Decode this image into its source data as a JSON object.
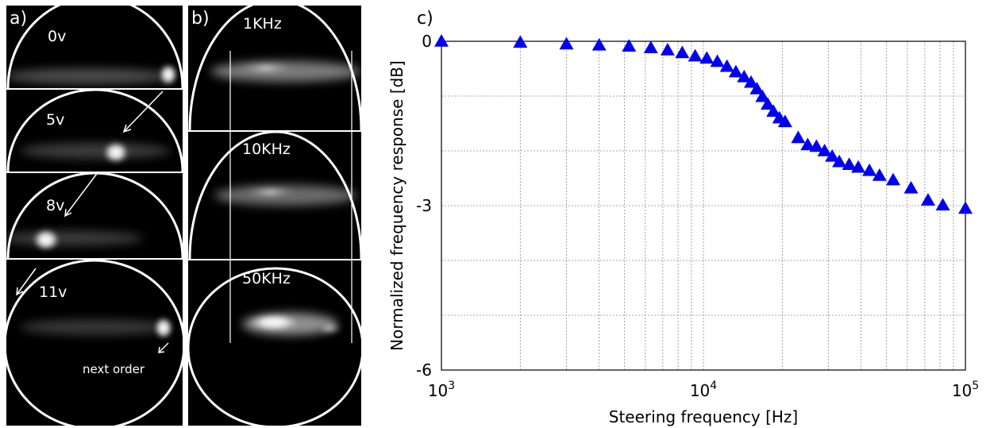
{
  "panel_a": {
    "label": "a)",
    "frames": [
      {
        "voltage": "0v"
      },
      {
        "voltage": "5v"
      },
      {
        "voltage": "8v"
      },
      {
        "voltage": "11v",
        "note": "next order"
      }
    ]
  },
  "panel_b": {
    "label": "b)",
    "frames": [
      {
        "frequency": "1KHz"
      },
      {
        "frequency": "10KHz"
      },
      {
        "frequency": "50KHz"
      }
    ]
  },
  "chart_data": {
    "panel_label": "c)",
    "type": "scatter",
    "xlabel": "Steering frequency [Hz]",
    "ylabel": "Normalized frequency response [dB]",
    "xscale": "log",
    "xlim": [
      1000,
      100000
    ],
    "ylim": [
      -6,
      0
    ],
    "y_ticks": [
      "0",
      "-3",
      "-6"
    ],
    "x_ticks": [
      {
        "base": "10",
        "exp": "3"
      },
      {
        "base": "10",
        "exp": "4"
      },
      {
        "base": "10",
        "exp": "5"
      }
    ],
    "grid": true,
    "marker": "triangle",
    "marker_color": "#0000ee",
    "points": [
      [
        1000,
        0.0
      ],
      [
        2000,
        -0.02
      ],
      [
        3000,
        -0.05
      ],
      [
        4000,
        -0.07
      ],
      [
        5200,
        -0.09
      ],
      [
        6300,
        -0.12
      ],
      [
        7300,
        -0.16
      ],
      [
        8300,
        -0.21
      ],
      [
        9300,
        -0.27
      ],
      [
        10300,
        -0.31
      ],
      [
        11300,
        -0.37
      ],
      [
        12300,
        -0.46
      ],
      [
        13300,
        -0.56
      ],
      [
        14300,
        -0.65
      ],
      [
        15200,
        -0.75
      ],
      [
        16000,
        -0.87
      ],
      [
        16800,
        -1.01
      ],
      [
        17600,
        -1.15
      ],
      [
        18500,
        -1.28
      ],
      [
        19500,
        -1.4
      ],
      [
        20500,
        -1.47
      ],
      [
        23000,
        -1.76
      ],
      [
        25000,
        -1.89
      ],
      [
        27000,
        -1.92
      ],
      [
        29000,
        -2.0
      ],
      [
        31000,
        -2.1
      ],
      [
        33000,
        -2.2
      ],
      [
        36000,
        -2.25
      ],
      [
        39000,
        -2.3
      ],
      [
        43000,
        -2.36
      ],
      [
        47000,
        -2.45
      ],
      [
        53000,
        -2.53
      ],
      [
        62000,
        -2.68
      ],
      [
        72000,
        -2.9
      ],
      [
        82000,
        -2.99
      ],
      [
        100000,
        -3.05
      ]
    ]
  }
}
